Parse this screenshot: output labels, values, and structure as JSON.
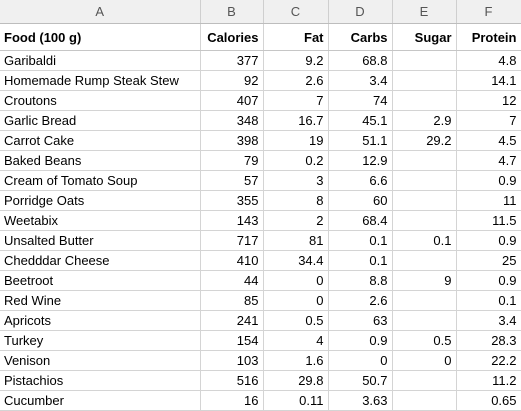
{
  "columns": [
    "A",
    "B",
    "C",
    "D",
    "E",
    "F"
  ],
  "headers": [
    "Food (100 g)",
    "Calories",
    "Fat",
    "Carbs",
    "Sugar",
    "Protein"
  ],
  "rows": [
    [
      "Garibaldi",
      "377",
      "9.2",
      "68.8",
      "",
      "4.8"
    ],
    [
      "Homemade Rump Steak Stew",
      "92",
      "2.6",
      "3.4",
      "",
      "14.1"
    ],
    [
      "Croutons",
      "407",
      "7",
      "74",
      "",
      "12"
    ],
    [
      "Garlic Bread",
      "348",
      "16.7",
      "45.1",
      "2.9",
      "7"
    ],
    [
      "Carrot Cake",
      "398",
      "19",
      "51.1",
      "29.2",
      "4.5"
    ],
    [
      "Baked Beans",
      "79",
      "0.2",
      "12.9",
      "",
      "4.7"
    ],
    [
      "Cream of Tomato Soup",
      "57",
      "3",
      "6.6",
      "",
      "0.9"
    ],
    [
      "Porridge Oats",
      "355",
      "8",
      "60",
      "",
      "11"
    ],
    [
      "Weetabix",
      "143",
      "2",
      "68.4",
      "",
      "11.5"
    ],
    [
      "Unsalted Butter",
      "717",
      "81",
      "0.1",
      "0.1",
      "0.9"
    ],
    [
      "Chedddar Cheese",
      "410",
      "34.4",
      "0.1",
      "",
      "25"
    ],
    [
      "Beetroot",
      "44",
      "0",
      "8.8",
      "9",
      "0.9"
    ],
    [
      "Red Wine",
      "85",
      "0",
      "2.6",
      "",
      "0.1"
    ],
    [
      "Apricots",
      "241",
      "0.5",
      "63",
      "",
      "3.4"
    ],
    [
      "Turkey",
      "154",
      "4",
      "0.9",
      "0.5",
      "28.3"
    ],
    [
      "Venison",
      "103",
      "1.6",
      "0",
      "0",
      "22.2"
    ],
    [
      "Pistachios",
      "516",
      "29.8",
      "50.7",
      "",
      "11.2"
    ],
    [
      "Cucumber",
      "16",
      "0.11",
      "3.63",
      "",
      "0.65"
    ]
  ]
}
